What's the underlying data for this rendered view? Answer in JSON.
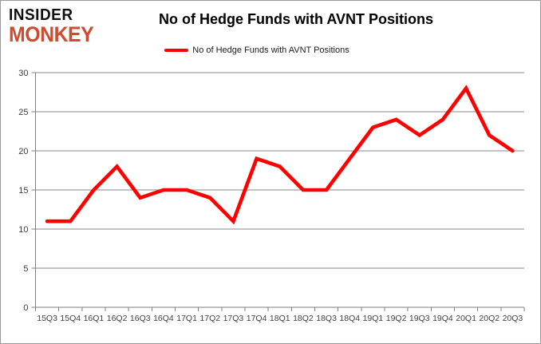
{
  "logo": {
    "line1": "INSIDER",
    "line2": "MONKEY"
  },
  "header": {
    "title": "No of Hedge Funds with AVNT Positions"
  },
  "legend": {
    "label": "No of Hedge Funds with AVNT Positions",
    "swatch_color": "#ff0000"
  },
  "chart_data": {
    "type": "line",
    "title": "No of Hedge Funds with AVNT Positions",
    "categories": [
      "15Q3",
      "15Q4",
      "16Q1",
      "16Q2",
      "16Q3",
      "16Q4",
      "17Q1",
      "17Q2",
      "17Q3",
      "17Q4",
      "18Q1",
      "18Q2",
      "18Q3",
      "18Q4",
      "19Q1",
      "19Q2",
      "19Q3",
      "19Q4",
      "20Q1",
      "20Q2",
      "20Q3"
    ],
    "series": [
      {
        "name": "No of Hedge Funds with AVNT Positions",
        "values": [
          11,
          11,
          15,
          18,
          14,
          15,
          15,
          14,
          11,
          19,
          18,
          15,
          15,
          19,
          23,
          24,
          22,
          24,
          28,
          22,
          20
        ],
        "color": "#ff0000"
      }
    ],
    "xlabel": "",
    "ylabel": "",
    "ylim": [
      0,
      30
    ],
    "yticks": [
      0,
      5,
      10,
      15,
      20,
      25,
      30
    ],
    "grid": "horizontal",
    "legend_position": "top"
  },
  "colors": {
    "line": "#ff0000",
    "gridline": "#8a8a8a",
    "axis": "#7f7f7f",
    "tick_text": "#3f3f3f",
    "logo_black": "#111111",
    "logo_red": "#cf4b2e",
    "bottom_glow": "#ff1e1e"
  }
}
